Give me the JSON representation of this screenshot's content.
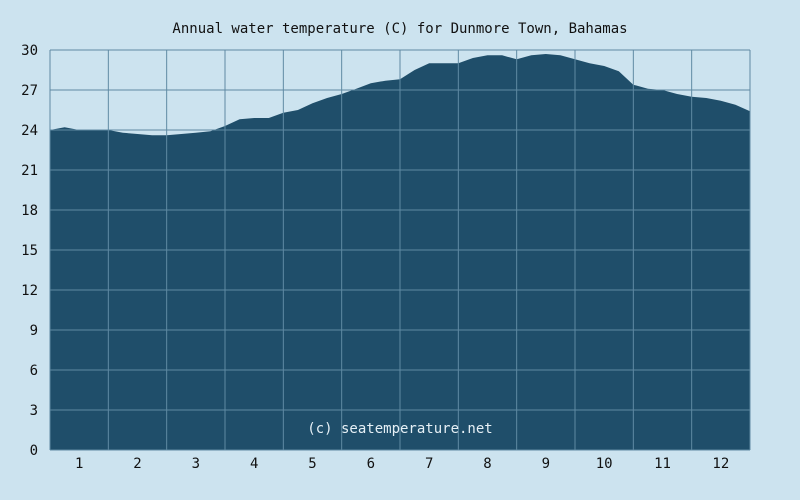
{
  "colors": {
    "background": "#cce3ef",
    "area_fill": "#1f4e6a",
    "grid": "#5f8aa3",
    "text": "#111111",
    "credit_text": "#e6f0f6"
  },
  "chart_data": {
    "type": "area",
    "title": "Annual water temperature (C) for Dunmore Town, Bahamas",
    "credit": "(c) seatemperature.net",
    "xlabel": "",
    "ylabel": "",
    "x_tick_labels": [
      "1",
      "2",
      "3",
      "4",
      "5",
      "6",
      "7",
      "8",
      "9",
      "10",
      "11",
      "12"
    ],
    "y_tick_labels": [
      "0",
      "3",
      "6",
      "9",
      "12",
      "15",
      "18",
      "21",
      "24",
      "27",
      "30"
    ],
    "ylim": [
      0,
      30
    ],
    "xlim": [
      0.5,
      12.5
    ],
    "grid": true,
    "series": [
      {
        "x": [
          0.5,
          0.75,
          1.0,
          1.25,
          1.5,
          1.75,
          2.0,
          2.25,
          2.5,
          2.75,
          3.0,
          3.25,
          3.5,
          3.75,
          4.0,
          4.25,
          4.5,
          4.75,
          5.0,
          5.25,
          5.5,
          5.75,
          6.0,
          6.25,
          6.5,
          6.75,
          7.0,
          7.25,
          7.5,
          7.75,
          8.0,
          8.25,
          8.5,
          8.75,
          9.0,
          9.25,
          9.5,
          9.75,
          10.0,
          10.25,
          10.5,
          10.75,
          11.0,
          11.25,
          11.5,
          11.75,
          12.0,
          12.25,
          12.5
        ],
        "values": [
          24.0,
          24.2,
          24.0,
          24.0,
          24.0,
          23.8,
          23.7,
          23.6,
          23.6,
          23.7,
          23.8,
          23.9,
          24.3,
          24.8,
          24.9,
          24.9,
          25.3,
          25.5,
          26.0,
          26.4,
          26.7,
          27.1,
          27.5,
          27.7,
          27.8,
          28.5,
          29.0,
          29.0,
          29.0,
          29.4,
          29.6,
          29.6,
          29.3,
          29.6,
          29.7,
          29.6,
          29.3,
          29.0,
          28.8,
          28.4,
          27.4,
          27.1,
          27.0,
          26.7,
          26.5,
          26.4,
          26.2,
          25.9,
          25.4
        ]
      }
    ]
  }
}
